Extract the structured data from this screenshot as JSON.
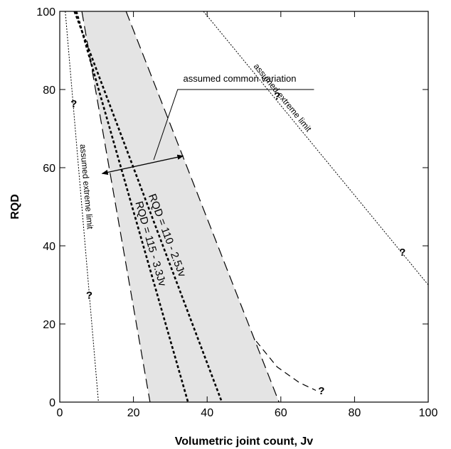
{
  "chart_data": {
    "type": "line",
    "xlabel": "Volumetric joint count,  Jv",
    "ylabel": "RQD",
    "xlim": [
      0,
      100
    ],
    "ylim": [
      0,
      100
    ],
    "x_ticks": [
      "0",
      "20",
      "40",
      "60",
      "80",
      "100"
    ],
    "y_ticks": [
      "0",
      "20",
      "40",
      "60",
      "80",
      "100"
    ],
    "grid": false,
    "shaded_band": {
      "label": "assumed common variation",
      "left_edge": [
        {
          "x": 6,
          "y": 100
        },
        {
          "x": 24.5,
          "y": 0
        }
      ],
      "right_edge": [
        {
          "x": 18,
          "y": 100
        },
        {
          "x": 59.5,
          "y": 0
        }
      ]
    },
    "series": [
      {
        "name": "RQD = 115 - 3.3Jv",
        "style": "dashed-bold",
        "points": [
          {
            "x": 4.5,
            "y": 100
          },
          {
            "x": 34.8,
            "y": 0
          }
        ]
      },
      {
        "name": "RQD = 110 - 2.5Jv",
        "style": "dashed-bold",
        "points": [
          {
            "x": 4,
            "y": 100
          },
          {
            "x": 44,
            "y": 0
          }
        ]
      },
      {
        "name": "assumed extreme limit",
        "style": "dotted",
        "points": [
          {
            "x": 1.5,
            "y": 100
          },
          {
            "x": 10.5,
            "y": 0
          }
        ]
      },
      {
        "name": "assumed  extreme  limit",
        "style": "dotted",
        "points": [
          {
            "x": 39,
            "y": 100
          },
          {
            "x": 100,
            "y": 30
          }
        ]
      },
      {
        "name": "",
        "style": "dashed-curve",
        "points": [
          {
            "x": 53.3,
            "y": 15.6
          },
          {
            "x": 59,
            "y": 9
          },
          {
            "x": 65,
            "y": 5
          },
          {
            "x": 69.5,
            "y": 3
          }
        ]
      }
    ],
    "question_marks": [
      {
        "text": "?",
        "x": 3.8,
        "y": 75.5
      },
      {
        "text": "?",
        "x": 8,
        "y": 26.5
      },
      {
        "text": "?",
        "x": 59,
        "y": 77.5
      },
      {
        "text": "?",
        "x": 93,
        "y": 37.5
      },
      {
        "text": "?",
        "x": 71,
        "y": 2
      }
    ]
  }
}
